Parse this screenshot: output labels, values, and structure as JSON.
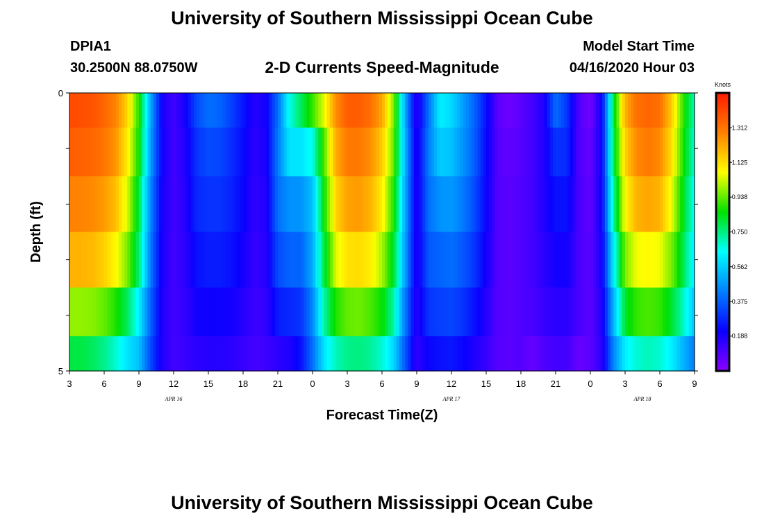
{
  "header": {
    "title": "University of Southern Mississippi Ocean Cube",
    "station": "DPIA1",
    "location": "30.2500N 88.0750W",
    "subtitle": "2-D Currents Speed-Magnitude",
    "model_label": "Model Start Time",
    "model_time": "04/16/2020 Hour 03"
  },
  "footer": {
    "title": "University of Southern Mississippi Ocean Cube"
  },
  "colorbar": {
    "unit": "Knots",
    "ticks": [
      {
        "label": "0.188",
        "value": 0.188
      },
      {
        "label": "0.375",
        "value": 0.375
      },
      {
        "label": "0.562",
        "value": 0.562
      },
      {
        "label": "0.750",
        "value": 0.75
      },
      {
        "label": "0.938",
        "value": 0.938
      },
      {
        "label": "1.125",
        "value": 1.125
      },
      {
        "label": "1.312",
        "value": 1.312
      }
    ],
    "range": [
      0.0,
      1.5
    ],
    "colors": [
      "#8a00ff",
      "#0a00ff",
      "#0080ff",
      "#00ffff",
      "#00e000",
      "#ffff00",
      "#ff8000",
      "#ff1a00"
    ]
  },
  "chart_data": {
    "type": "heatmap",
    "xlabel": "Forecast Time(Z)",
    "ylabel": "Depth (ft)",
    "x_range_hours": [
      0,
      54
    ],
    "y_tick_labels": [
      {
        "label": "0",
        "depth": 0
      },
      {
        "label": "5",
        "depth": 5
      }
    ],
    "ylim": [
      0,
      5
    ],
    "x_tick_labels": [
      "3",
      "6",
      "9",
      "12",
      "15",
      "18",
      "21",
      "0",
      "3",
      "6",
      "9",
      "12",
      "15",
      "18",
      "21",
      "0",
      "3",
      "6",
      "9"
    ],
    "date_labels": [
      {
        "label": "APR  16",
        "at": 9
      },
      {
        "label": "APR  17",
        "at": 33
      },
      {
        "label": "APR  18",
        "at": 49.5
      }
    ],
    "depth_layers_ft": [
      0.25,
      1.0,
      2.0,
      3.0,
      4.0,
      4.75
    ],
    "speed_by_hour": [
      [
        1.4,
        1.39,
        1.38,
        1.34,
        1.28,
        1.14,
        0.88,
        0.5,
        0.2,
        0.12,
        0.2,
        0.34,
        0.4,
        0.38,
        0.32,
        0.25,
        0.17,
        0.2,
        0.4,
        0.66,
        0.78,
        0.9,
        1.05,
        1.26,
        1.36,
        1.36,
        1.32,
        1.22,
        0.96,
        0.5,
        0.15,
        0.4,
        0.62,
        0.58,
        0.48,
        0.38,
        0.24,
        0.08,
        0.05,
        0.08,
        0.12,
        0.18,
        0.4,
        0.3,
        0.1,
        0.04,
        0.22,
        0.8,
        1.2,
        1.32,
        1.34,
        1.32,
        1.16,
        0.9,
        0.7
      ],
      [
        1.36,
        1.35,
        1.34,
        1.31,
        1.25,
        1.1,
        0.86,
        0.48,
        0.21,
        0.12,
        0.18,
        0.3,
        0.34,
        0.33,
        0.29,
        0.23,
        0.16,
        0.19,
        0.42,
        0.6,
        0.6,
        0.66,
        0.92,
        1.21,
        1.3,
        1.3,
        1.26,
        1.16,
        0.94,
        0.52,
        0.17,
        0.42,
        0.56,
        0.54,
        0.46,
        0.37,
        0.23,
        0.09,
        0.07,
        0.09,
        0.12,
        0.18,
        0.3,
        0.28,
        0.1,
        0.06,
        0.22,
        0.78,
        1.15,
        1.27,
        1.3,
        1.27,
        1.13,
        0.88,
        0.68
      ],
      [
        1.28,
        1.28,
        1.27,
        1.24,
        1.18,
        1.04,
        0.8,
        0.44,
        0.2,
        0.12,
        0.17,
        0.28,
        0.3,
        0.3,
        0.27,
        0.22,
        0.15,
        0.18,
        0.4,
        0.46,
        0.46,
        0.54,
        0.86,
        1.14,
        1.23,
        1.24,
        1.2,
        1.1,
        0.88,
        0.5,
        0.17,
        0.4,
        0.46,
        0.47,
        0.42,
        0.34,
        0.22,
        0.09,
        0.08,
        0.1,
        0.12,
        0.18,
        0.24,
        0.24,
        0.11,
        0.07,
        0.22,
        0.72,
        1.08,
        1.2,
        1.22,
        1.2,
        1.06,
        0.84,
        0.64
      ],
      [
        1.2,
        1.2,
        1.19,
        1.15,
        1.08,
        0.96,
        0.76,
        0.42,
        0.19,
        0.12,
        0.16,
        0.24,
        0.26,
        0.26,
        0.24,
        0.2,
        0.14,
        0.17,
        0.34,
        0.38,
        0.38,
        0.5,
        0.8,
        1.04,
        1.12,
        1.13,
        1.1,
        1.0,
        0.82,
        0.48,
        0.17,
        0.36,
        0.38,
        0.4,
        0.36,
        0.3,
        0.2,
        0.09,
        0.08,
        0.1,
        0.12,
        0.16,
        0.2,
        0.2,
        0.11,
        0.08,
        0.2,
        0.62,
        0.96,
        1.06,
        1.08,
        1.06,
        0.96,
        0.8,
        0.6
      ],
      [
        0.98,
        0.98,
        0.97,
        0.94,
        0.88,
        0.78,
        0.62,
        0.38,
        0.18,
        0.12,
        0.15,
        0.2,
        0.21,
        0.21,
        0.2,
        0.17,
        0.13,
        0.15,
        0.26,
        0.28,
        0.3,
        0.44,
        0.72,
        0.88,
        0.94,
        0.95,
        0.92,
        0.86,
        0.72,
        0.42,
        0.16,
        0.3,
        0.32,
        0.33,
        0.3,
        0.24,
        0.17,
        0.09,
        0.08,
        0.1,
        0.11,
        0.14,
        0.16,
        0.16,
        0.11,
        0.08,
        0.18,
        0.52,
        0.82,
        0.9,
        0.92,
        0.9,
        0.82,
        0.7,
        0.54
      ],
      [
        0.8,
        0.8,
        0.78,
        0.74,
        0.68,
        0.6,
        0.54,
        0.34,
        0.18,
        0.12,
        0.14,
        0.16,
        0.17,
        0.17,
        0.16,
        0.14,
        0.12,
        0.13,
        0.16,
        0.18,
        0.24,
        0.4,
        0.6,
        0.7,
        0.74,
        0.75,
        0.73,
        0.68,
        0.58,
        0.36,
        0.15,
        0.22,
        0.24,
        0.25,
        0.22,
        0.18,
        0.14,
        0.09,
        0.08,
        0.09,
        0.06,
        0.1,
        0.12,
        0.12,
        0.06,
        0.08,
        0.16,
        0.44,
        0.62,
        0.68,
        0.7,
        0.68,
        0.62,
        0.52,
        0.42
      ]
    ]
  }
}
